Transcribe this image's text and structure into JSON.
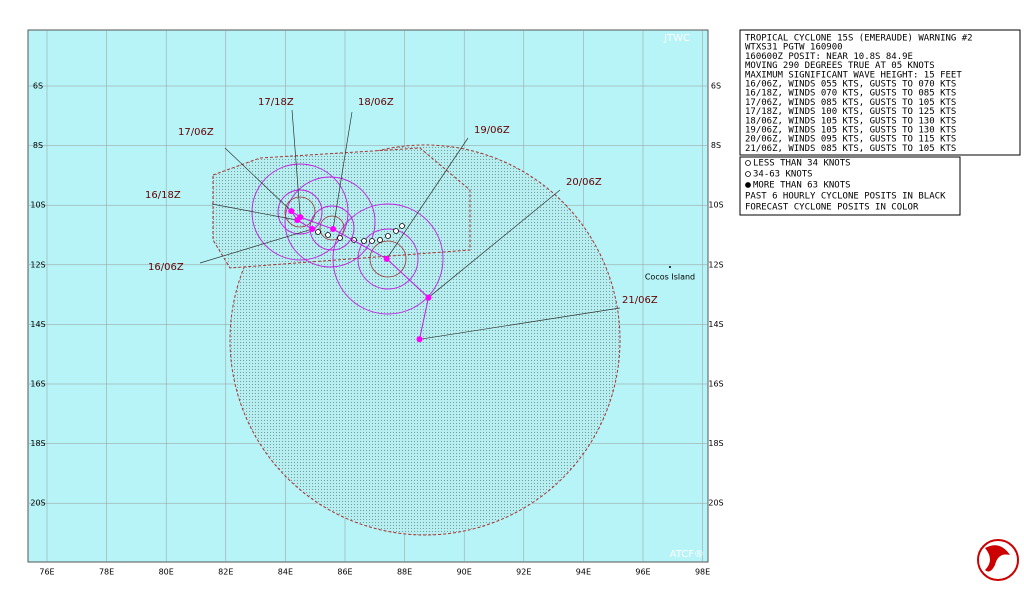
{
  "map": {
    "agency": "JTWC",
    "footer": "ATCF®",
    "island": "Cocos Island",
    "lon_labels": [
      "76E",
      "78E",
      "80E",
      "82E",
      "84E",
      "86E",
      "88E",
      "90E",
      "92E",
      "94E",
      "96E",
      "98E"
    ],
    "lat_labels": [
      "6S",
      "8S",
      "10S",
      "12S",
      "14S",
      "16S",
      "18S",
      "20S"
    ],
    "forecast": [
      {
        "label": "16/06Z",
        "lon": 84.9,
        "lat": 10.8
      },
      {
        "label": "16/18Z",
        "lon": 84.4,
        "lat": 10.5
      },
      {
        "label": "17/06Z",
        "lon": 84.2,
        "lat": 10.2
      },
      {
        "label": "17/18Z",
        "lon": 84.5,
        "lat": 10.4
      },
      {
        "label": "18/06Z",
        "lon": 85.6,
        "lat": 10.8
      },
      {
        "label": "19/06Z",
        "lon": 87.4,
        "lat": 11.8
      },
      {
        "label": "20/06Z",
        "lon": 88.8,
        "lat": 13.1
      },
      {
        "label": "21/06Z",
        "lon": 88.5,
        "lat": 14.5
      }
    ]
  },
  "warning": {
    "lines": [
      "TROPICAL CYCLONE 15S (EMERAUDE) WARNING #2",
      "WTXS31 PGTW 160900",
      "160600Z POSIT: NEAR 10.8S 84.9E",
      "MOVING 290 DEGREES TRUE AT 05 KNOTS",
      "MAXIMUM SIGNIFICANT WAVE HEIGHT: 15 FEET",
      "16/06Z, WINDS 055 KTS, GUSTS TO 070 KTS",
      "16/18Z, WINDS 070 KTS, GUSTS TO 085 KTS",
      "17/06Z, WINDS 085 KTS, GUSTS TO 105 KTS",
      "17/18Z, WINDS 100 KTS, GUSTS TO 125 KTS",
      "18/06Z, WINDS 105 KTS, GUSTS TO 130 KTS",
      "19/06Z, WINDS 105 KTS, GUSTS TO 130 KTS",
      "20/06Z, WINDS 095 KTS, GUSTS TO 115 KTS",
      "21/06Z, WINDS 085 KTS, GUSTS TO 105 KTS"
    ]
  },
  "legend": {
    "lines": [
      "LESS THAN 34 KNOTS",
      "34-63 KNOTS",
      "MORE THAN 63 KNOTS",
      "PAST 6 HOURLY CYCLONE POSITS IN BLACK",
      "FORECAST CYCLONE POSITS IN COLOR"
    ]
  }
}
